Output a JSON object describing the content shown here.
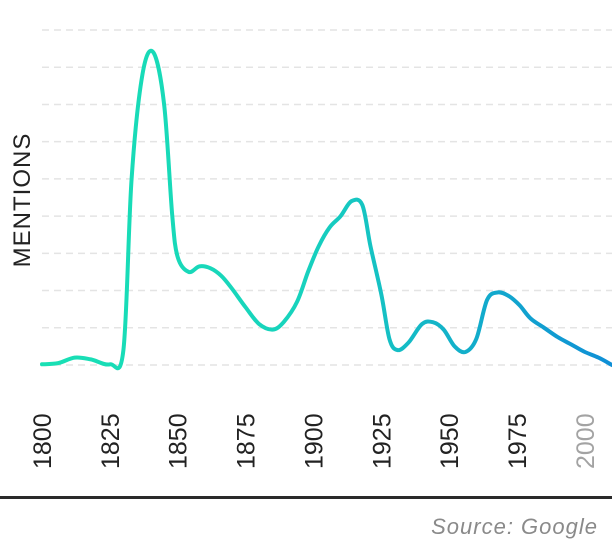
{
  "chart_data": {
    "type": "line",
    "title": "",
    "xlabel": "",
    "ylabel": "MENTIONS",
    "x": [
      1800,
      1806,
      1812,
      1818,
      1825,
      1830,
      1833,
      1837,
      1841,
      1845,
      1848,
      1850,
      1854,
      1858,
      1862,
      1866,
      1870,
      1875,
      1880,
      1885,
      1889,
      1894,
      1898,
      1902,
      1906,
      1910,
      1914,
      1918,
      1921,
      1925,
      1928,
      1931,
      1935,
      1940,
      1944,
      1948,
      1952,
      1956,
      1960,
      1964,
      1968,
      1972,
      1976,
      1980,
      1985,
      1990,
      1995,
      2000,
      2005,
      2010
    ],
    "series": [
      {
        "values": [
          0.2,
          0.5,
          2.0,
          1.5,
          0.2,
          4.0,
          50.0,
          78.0,
          84.0,
          70.0,
          40.0,
          29.0,
          25.0,
          26.5,
          26.0,
          24.0,
          20.5,
          15.5,
          11.0,
          9.5,
          11.5,
          17.0,
          25.0,
          32.0,
          37.0,
          40.0,
          44.0,
          43.0,
          32.0,
          19.0,
          7.0,
          4.0,
          6.0,
          11.0,
          11.5,
          9.5,
          5.0,
          3.5,
          7.0,
          17.5,
          19.5,
          18.5,
          16.0,
          12.5,
          10.0,
          7.5,
          5.5,
          3.5,
          2.0,
          0.0
        ]
      }
    ],
    "xlim": [
      1800,
      2010
    ],
    "ylim": [
      0,
      90
    ],
    "x_ticks": [
      "1800",
      "1825",
      "1850",
      "1875",
      "1900",
      "1925",
      "1950",
      "1975",
      "2000"
    ],
    "grid": "horizontal dashed",
    "legend": "none",
    "colors": {
      "line_start": "#19e0b4",
      "line_end": "#0f8fd6",
      "tick_text": "#222222",
      "tick_text_dim": "#a3a3a3",
      "grid": "#e4e4e4",
      "baseline": "#2a2a2a"
    }
  },
  "source": "Source: Google"
}
